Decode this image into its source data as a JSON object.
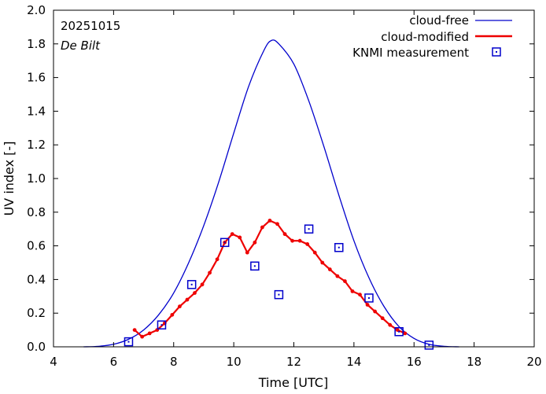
{
  "chart_data": {
    "type": "line",
    "title": "",
    "annotation_date": "20251015",
    "annotation_location": "De Bilt",
    "xlabel": "Time  [UTC]",
    "ylabel": "UV index  [-]",
    "xlim": [
      4,
      20
    ],
    "ylim": [
      0,
      2.0
    ],
    "xticks": [
      4,
      6,
      8,
      10,
      12,
      14,
      16,
      18,
      20
    ],
    "xtick_labels": [
      "4",
      "6",
      "8",
      "10",
      "12",
      "14",
      "16",
      "18",
      "20"
    ],
    "yticks": [
      0,
      0.2,
      0.4,
      0.6,
      0.8,
      1.0,
      1.2,
      1.4,
      1.6,
      1.8,
      2.0
    ],
    "ytick_labels": [
      "0.0",
      "0.2",
      "0.4",
      "0.6",
      "0.8",
      "1.0",
      "1.2",
      "1.4",
      "1.6",
      "1.8",
      "2.0"
    ],
    "grid": false,
    "legend_position": "top-right",
    "series": [
      {
        "name": "cloud-free",
        "kind": "line",
        "color": "#0000cc",
        "x": [
          5.0,
          5.5,
          6.0,
          6.5,
          7.0,
          7.5,
          8.0,
          8.5,
          9.0,
          9.5,
          10.0,
          10.5,
          11.0,
          11.25,
          11.5,
          12.0,
          12.5,
          13.0,
          13.5,
          14.0,
          14.5,
          15.0,
          15.5,
          16.0,
          16.5,
          17.0,
          17.5
        ],
        "values": [
          0.0,
          0.003,
          0.015,
          0.045,
          0.1,
          0.19,
          0.32,
          0.5,
          0.72,
          0.98,
          1.27,
          1.55,
          1.76,
          1.82,
          1.8,
          1.68,
          1.46,
          1.19,
          0.9,
          0.63,
          0.41,
          0.24,
          0.12,
          0.05,
          0.015,
          0.003,
          0.0
        ]
      },
      {
        "name": "cloud-modified",
        "kind": "line-markers",
        "color": "#ee0000",
        "x": [
          6.7,
          6.95,
          7.2,
          7.45,
          7.7,
          7.95,
          8.2,
          8.45,
          8.7,
          8.95,
          9.2,
          9.45,
          9.7,
          9.95,
          10.2,
          10.45,
          10.7,
          10.95,
          11.2,
          11.45,
          11.7,
          11.95,
          12.2,
          12.45,
          12.7,
          12.95,
          13.2,
          13.45,
          13.7,
          13.95,
          14.2,
          14.45,
          14.7,
          14.95,
          15.2,
          15.45,
          15.7
        ],
        "values": [
          0.1,
          0.06,
          0.08,
          0.1,
          0.14,
          0.19,
          0.24,
          0.28,
          0.32,
          0.37,
          0.44,
          0.52,
          0.62,
          0.67,
          0.65,
          0.56,
          0.62,
          0.71,
          0.75,
          0.73,
          0.67,
          0.63,
          0.63,
          0.61,
          0.56,
          0.5,
          0.46,
          0.42,
          0.39,
          0.33,
          0.31,
          0.25,
          0.21,
          0.17,
          0.13,
          0.1,
          0.08
        ]
      },
      {
        "name": "KNMI measurement",
        "kind": "scatter",
        "color": "#0000cc",
        "x": [
          6.5,
          7.6,
          8.6,
          9.7,
          10.7,
          11.5,
          12.5,
          13.5,
          14.5,
          15.5,
          16.5
        ],
        "values": [
          0.03,
          0.13,
          0.37,
          0.62,
          0.48,
          0.31,
          0.7,
          0.59,
          0.29,
          0.09,
          0.01
        ]
      }
    ]
  }
}
